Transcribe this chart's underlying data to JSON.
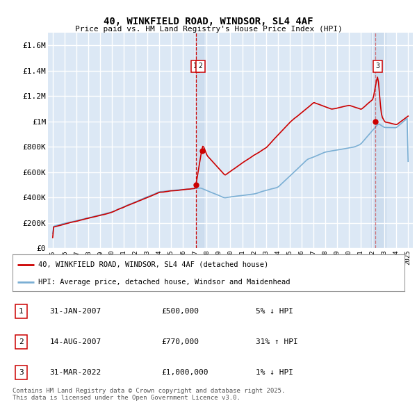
{
  "title1": "40, WINKFIELD ROAD, WINDSOR, SL4 4AF",
  "title2": "Price paid vs. HM Land Registry's House Price Index (HPI)",
  "ylabel_ticks": [
    "£0",
    "£200K",
    "£400K",
    "£600K",
    "£800K",
    "£1M",
    "£1.2M",
    "£1.4M",
    "£1.6M"
  ],
  "ytick_values": [
    0,
    200000,
    400000,
    600000,
    800000,
    1000000,
    1200000,
    1400000,
    1600000
  ],
  "ylim": [
    0,
    1700000
  ],
  "xlim_years": [
    1994.6,
    2025.4
  ],
  "bg_color": "#dce8f5",
  "chart_bg_color": "#dce8f5",
  "grid_color": "#ffffff",
  "red_line_color": "#cc0000",
  "blue_line_color": "#7bafd4",
  "vline_color": "#cc0000",
  "highlight_color": "#ccdcee",
  "sale1": {
    "date_year": 2007.08,
    "price": 500000,
    "label": "1"
  },
  "sale2": {
    "date_year": 2007.62,
    "price": 770000,
    "label": "2"
  },
  "sale3": {
    "date_year": 2022.25,
    "price": 1000000,
    "label": "3"
  },
  "legend_line1": "40, WINKFIELD ROAD, WINDSOR, SL4 4AF (detached house)",
  "legend_line2": "HPI: Average price, detached house, Windsor and Maidenhead",
  "table_rows": [
    {
      "num": "1",
      "date": "31-JAN-2007",
      "price": "£500,000",
      "hpi": "5% ↓ HPI"
    },
    {
      "num": "2",
      "date": "14-AUG-2007",
      "price": "£770,000",
      "hpi": "31% ↑ HPI"
    },
    {
      "num": "3",
      "date": "31-MAR-2022",
      "price": "£1,000,000",
      "hpi": "1% ↓ HPI"
    }
  ],
  "footer": "Contains HM Land Registry data © Crown copyright and database right 2025.\nThis data is licensed under the Open Government Licence v3.0.",
  "xtick_years": [
    1995,
    1996,
    1997,
    1998,
    1999,
    2000,
    2001,
    2002,
    2003,
    2004,
    2005,
    2006,
    2007,
    2008,
    2009,
    2010,
    2011,
    2012,
    2013,
    2014,
    2015,
    2016,
    2017,
    2018,
    2019,
    2020,
    2021,
    2022,
    2023,
    2024,
    2025
  ]
}
